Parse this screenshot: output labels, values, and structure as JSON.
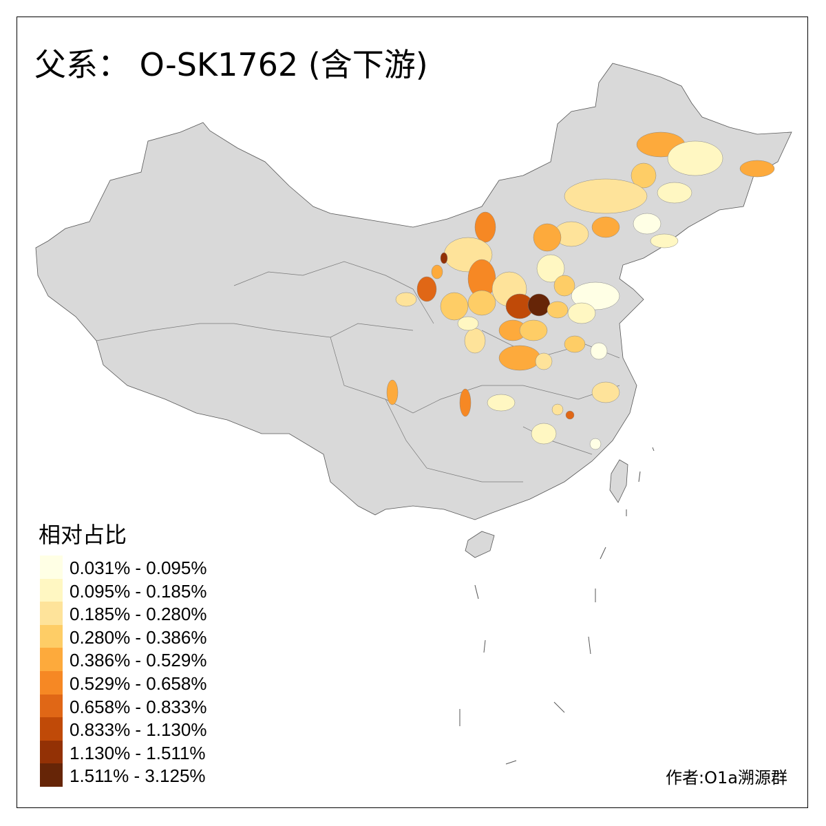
{
  "title": "父系： O-SK1762 (含下游)",
  "legend": {
    "title": "相对占比",
    "items": [
      {
        "label": "0.031% - 0.095%",
        "color": "#FFFFE5"
      },
      {
        "label": "0.095% - 0.185%",
        "color": "#FFF7C2"
      },
      {
        "label": "0.185% - 0.280%",
        "color": "#FEE39A"
      },
      {
        "label": "0.280% - 0.386%",
        "color": "#FECD66"
      },
      {
        "label": "0.386% - 0.529%",
        "color": "#FDAA3C"
      },
      {
        "label": "0.529% - 0.658%",
        "color": "#F68824"
      },
      {
        "label": "0.658% - 0.833%",
        "color": "#E06716"
      },
      {
        "label": "0.833% - 1.130%",
        "color": "#C04A08"
      },
      {
        "label": "1.130% - 1.511%",
        "color": "#933105"
      },
      {
        "label": "1.511% - 3.125%",
        "color": "#662507"
      }
    ]
  },
  "author": "作者:O1a溯源群",
  "colors": {
    "no_data": "#D9D9D9",
    "border": "#555555"
  }
}
